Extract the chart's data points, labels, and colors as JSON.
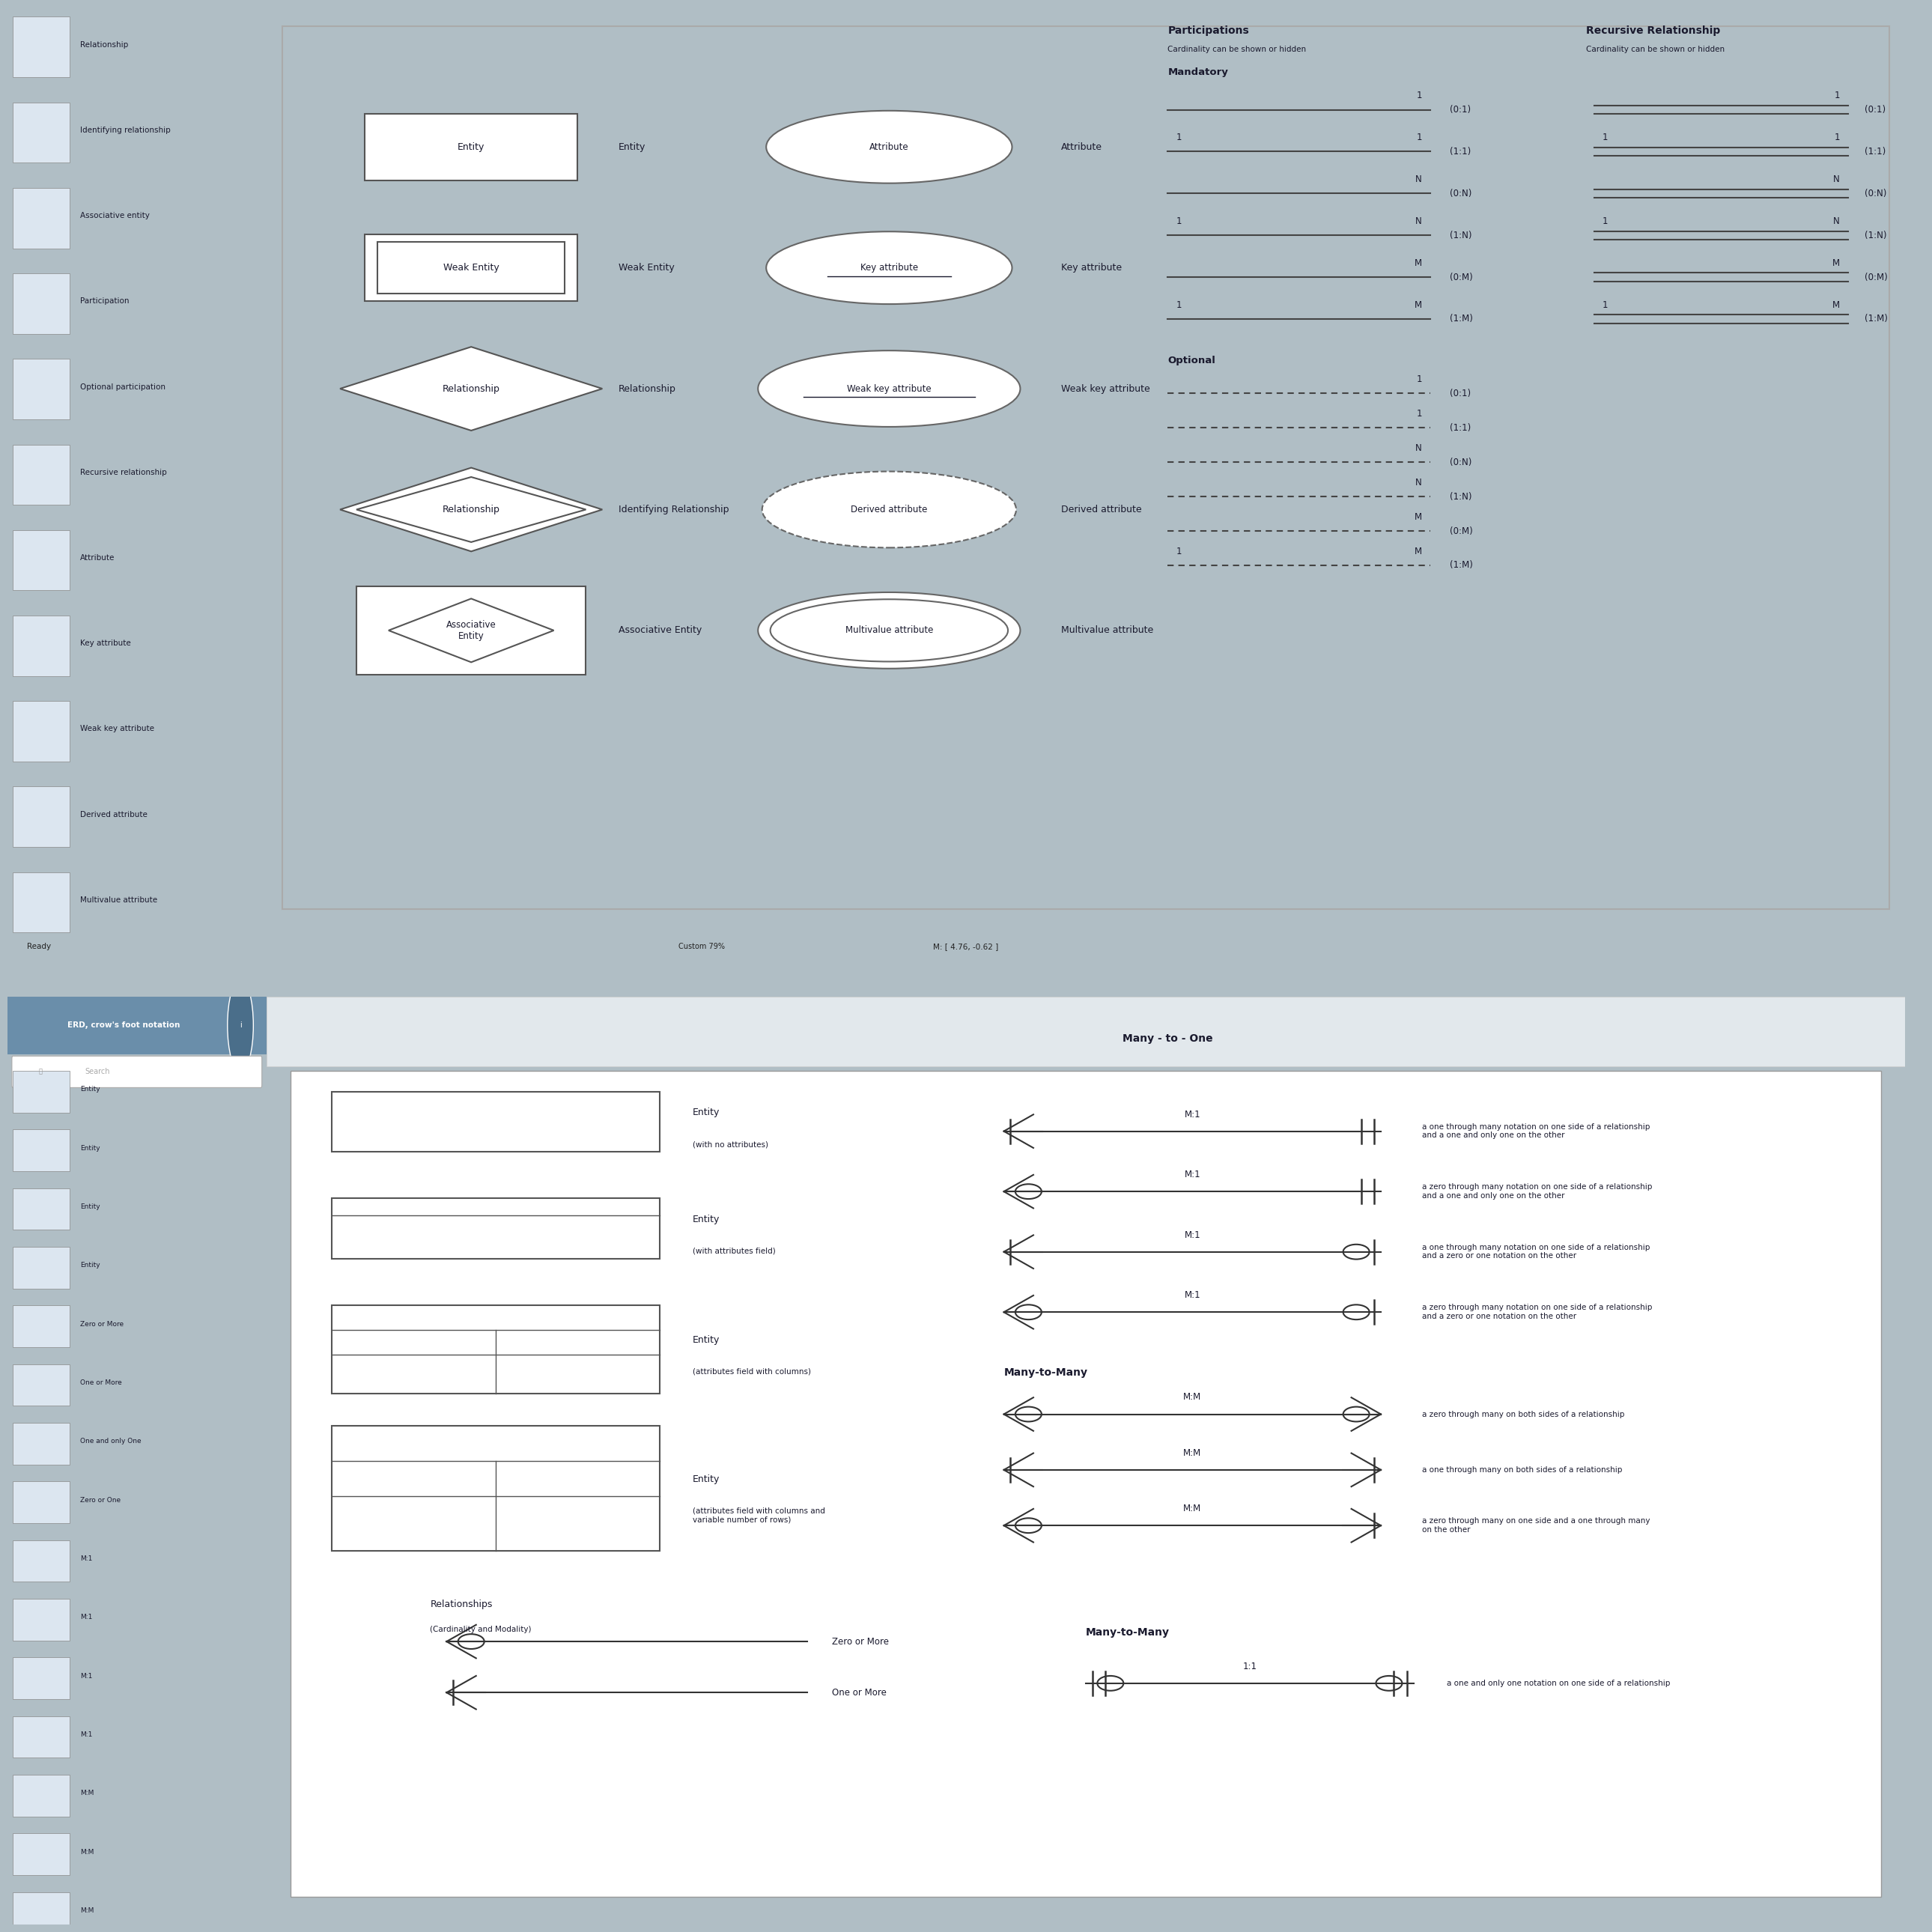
{
  "bg_color": "#b0bec5",
  "sidebar_color": "#b8c8d4",
  "white": "#ffffff",
  "black": "#000000",
  "dark_text": "#1a1a2e",
  "participation_title": "Participations",
  "participation_sub": "Cardinality can be shown or hidden",
  "recursive_title": "Recursive Relationship",
  "recursive_sub": "Cardinality can be shown or hidden",
  "mandatory_label": "Mandatory",
  "optional_label": "Optional",
  "mandatory_rows": [
    {
      "left": "",
      "right": "1",
      "label": "(0:1)"
    },
    {
      "left": "1",
      "right": "1",
      "label": "(1:1)"
    },
    {
      "left": "",
      "right": "N",
      "label": "(0:N)"
    },
    {
      "left": "1",
      "right": "N",
      "label": "(1:N)"
    },
    {
      "left": "",
      "right": "M",
      "label": "(0:M)"
    },
    {
      "left": "1",
      "right": "M",
      "label": "(1:M)"
    }
  ],
  "optional_rows": [
    {
      "left": "",
      "right": "1",
      "label": "(0:1)"
    },
    {
      "left": "",
      "right": "1",
      "label": "(1:1)"
    },
    {
      "left": "",
      "right": "N",
      "label": "(0:N)"
    },
    {
      "left": "",
      "right": "N",
      "label": "(1:N)"
    },
    {
      "left": "",
      "right": "M",
      "label": "(0:M)"
    },
    {
      "left": "1",
      "right": "M",
      "label": "(1:M)"
    }
  ],
  "sidebar_items_top": [
    "Relationship",
    "Identifying relationship",
    "Associative entity",
    "Participation",
    "Optional participation",
    "Recursive relationship",
    "Attribute",
    "Key attribute",
    "Weak key attribute",
    "Derived attribute",
    "Multivalue attribute"
  ],
  "row_labels_left": [
    "Entity",
    "Weak Entity",
    "Relationship",
    "Identifying Relationship",
    "Associative Entity"
  ],
  "row_labels_attr": [
    "Attribute",
    "Key attribute",
    "Weak key attribute",
    "Derived attribute",
    "Multivalue attribute"
  ],
  "sidebar_items_bottom": [
    "Entity",
    "Entity",
    "Entity",
    "Entity",
    "Zero or More",
    "One or More",
    "One and only One",
    "Zero or One",
    "M:1",
    "M:1",
    "M:1",
    "M:1",
    "M:M",
    "M:M",
    "M:M"
  ],
  "crow_title": "ERD, crow's foot notation",
  "many_to_one_title": "Many - to - One",
  "many_to_many_title": "Many-to-Many",
  "many_to_many_title2": "Many-to-Many",
  "crow_descriptions": [
    "a one through many notation on one side of a relationship\nand a one and only one on the other",
    "a zero through many notation on one side of a relationship\nand a one and only one on the other",
    "a one through many notation on one side of a relationship\nand a zero or one notation on the other",
    "a zero through many notation on one side of a relationship\nand a zero or one notation on the other"
  ],
  "mm_descriptions": [
    "a zero through many on both sides of a relationship",
    "a one through many on both sides of a relationship",
    "a zero through many on one side and a one through many\non the other"
  ],
  "one_one_desc": "a one and only one notation on one side of a relationship",
  "entity_labels": [
    "Entity",
    "Entity",
    "Entity",
    "Entity"
  ],
  "entity_subs": [
    "(with no attributes)",
    "(with attributes field)",
    "(attributes field with columns)",
    "(attributes field with columns and\nvariable number of rows)"
  ],
  "relationships_label": "Relationships",
  "relationships_sub": "(Cardinality and Modality)",
  "zero_or_more_label": "Zero or More",
  "one_or_more_label": "One or More",
  "one_one_label": "1:1",
  "ready_text": "Ready",
  "status_text": "M: [ 4.76, -0.62 ]",
  "zoom_text": "Custom 79%",
  "search_placeholder": "🔍 Search"
}
